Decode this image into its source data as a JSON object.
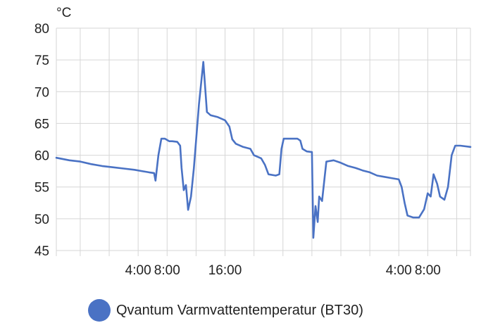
{
  "chart_data": {
    "type": "line",
    "y_unit": "°C",
    "ylim": [
      45,
      80
    ],
    "y_ticks": [
      45,
      50,
      55,
      60,
      65,
      70,
      75,
      80
    ],
    "x_range_hours": [
      -7.3,
      49.9
    ],
    "x_ticks": [
      {
        "hour": 4,
        "label": "4:00"
      },
      {
        "hour": 8,
        "label": "8:00"
      },
      {
        "hour": 16,
        "label": "16:00"
      },
      {
        "hour": 28,
        "label": ""
      },
      {
        "hour": 40,
        "label": "4:00"
      },
      {
        "hour": 44,
        "label": "8:00"
      }
    ],
    "grid": true,
    "legend_position": "bottom",
    "series": [
      {
        "name": "Qvantum Varmvattentemperatur (BT30)",
        "color": "#4a72c4",
        "points": [
          [
            -7.3,
            59.6
          ],
          [
            -5.5,
            59.2
          ],
          [
            -4.0,
            59.0
          ],
          [
            -2.5,
            58.6
          ],
          [
            -1.0,
            58.3
          ],
          [
            0.5,
            58.1
          ],
          [
            2.0,
            57.9
          ],
          [
            3.5,
            57.7
          ],
          [
            4.5,
            57.5
          ],
          [
            5.5,
            57.3
          ],
          [
            6.2,
            57.2
          ],
          [
            6.4,
            56.0
          ],
          [
            6.8,
            60.0
          ],
          [
            7.2,
            62.6
          ],
          [
            7.7,
            62.6
          ],
          [
            8.3,
            62.2
          ],
          [
            8.7,
            62.2
          ],
          [
            9.4,
            62.1
          ],
          [
            9.8,
            61.5
          ],
          [
            10.0,
            58.0
          ],
          [
            10.3,
            54.5
          ],
          [
            10.6,
            55.3
          ],
          [
            10.9,
            51.4
          ],
          [
            11.3,
            53.5
          ],
          [
            11.7,
            58.0
          ],
          [
            12.4,
            68.0
          ],
          [
            13.0,
            74.7
          ],
          [
            13.5,
            66.8
          ],
          [
            14.0,
            66.3
          ],
          [
            15.0,
            66.0
          ],
          [
            16.0,
            65.5
          ],
          [
            16.6,
            64.5
          ],
          [
            17.0,
            62.5
          ],
          [
            17.5,
            61.8
          ],
          [
            18.5,
            61.3
          ],
          [
            19.5,
            61.0
          ],
          [
            20.0,
            60.0
          ],
          [
            21.0,
            59.5
          ],
          [
            21.5,
            58.5
          ],
          [
            22.0,
            57.0
          ],
          [
            23.0,
            56.8
          ],
          [
            23.5,
            57.0
          ],
          [
            23.8,
            61.0
          ],
          [
            24.1,
            62.6
          ],
          [
            25.0,
            62.6
          ],
          [
            26.0,
            62.6
          ],
          [
            26.4,
            62.3
          ],
          [
            26.7,
            61.0
          ],
          [
            27.3,
            60.6
          ],
          [
            28.0,
            60.5
          ],
          [
            28.2,
            47.0
          ],
          [
            28.5,
            52.0
          ],
          [
            28.8,
            49.5
          ],
          [
            29.0,
            53.5
          ],
          [
            29.4,
            52.8
          ],
          [
            29.8,
            57.0
          ],
          [
            30.0,
            59.0
          ],
          [
            31.0,
            59.2
          ],
          [
            32.0,
            58.8
          ],
          [
            33.0,
            58.3
          ],
          [
            34.0,
            58.0
          ],
          [
            35.0,
            57.6
          ],
          [
            36.0,
            57.3
          ],
          [
            37.0,
            56.8
          ],
          [
            38.0,
            56.6
          ],
          [
            39.0,
            56.4
          ],
          [
            40.0,
            56.2
          ],
          [
            40.4,
            55.0
          ],
          [
            40.8,
            52.5
          ],
          [
            41.2,
            50.5
          ],
          [
            42.0,
            50.2
          ],
          [
            42.8,
            50.2
          ],
          [
            43.5,
            51.5
          ],
          [
            44.0,
            54.0
          ],
          [
            44.4,
            53.5
          ],
          [
            44.8,
            57.0
          ],
          [
            45.3,
            55.5
          ],
          [
            45.7,
            53.5
          ],
          [
            46.3,
            53.0
          ],
          [
            46.8,
            55.0
          ],
          [
            47.3,
            60.0
          ],
          [
            47.8,
            61.5
          ],
          [
            48.5,
            61.5
          ],
          [
            49.9,
            61.3
          ]
        ]
      }
    ]
  }
}
